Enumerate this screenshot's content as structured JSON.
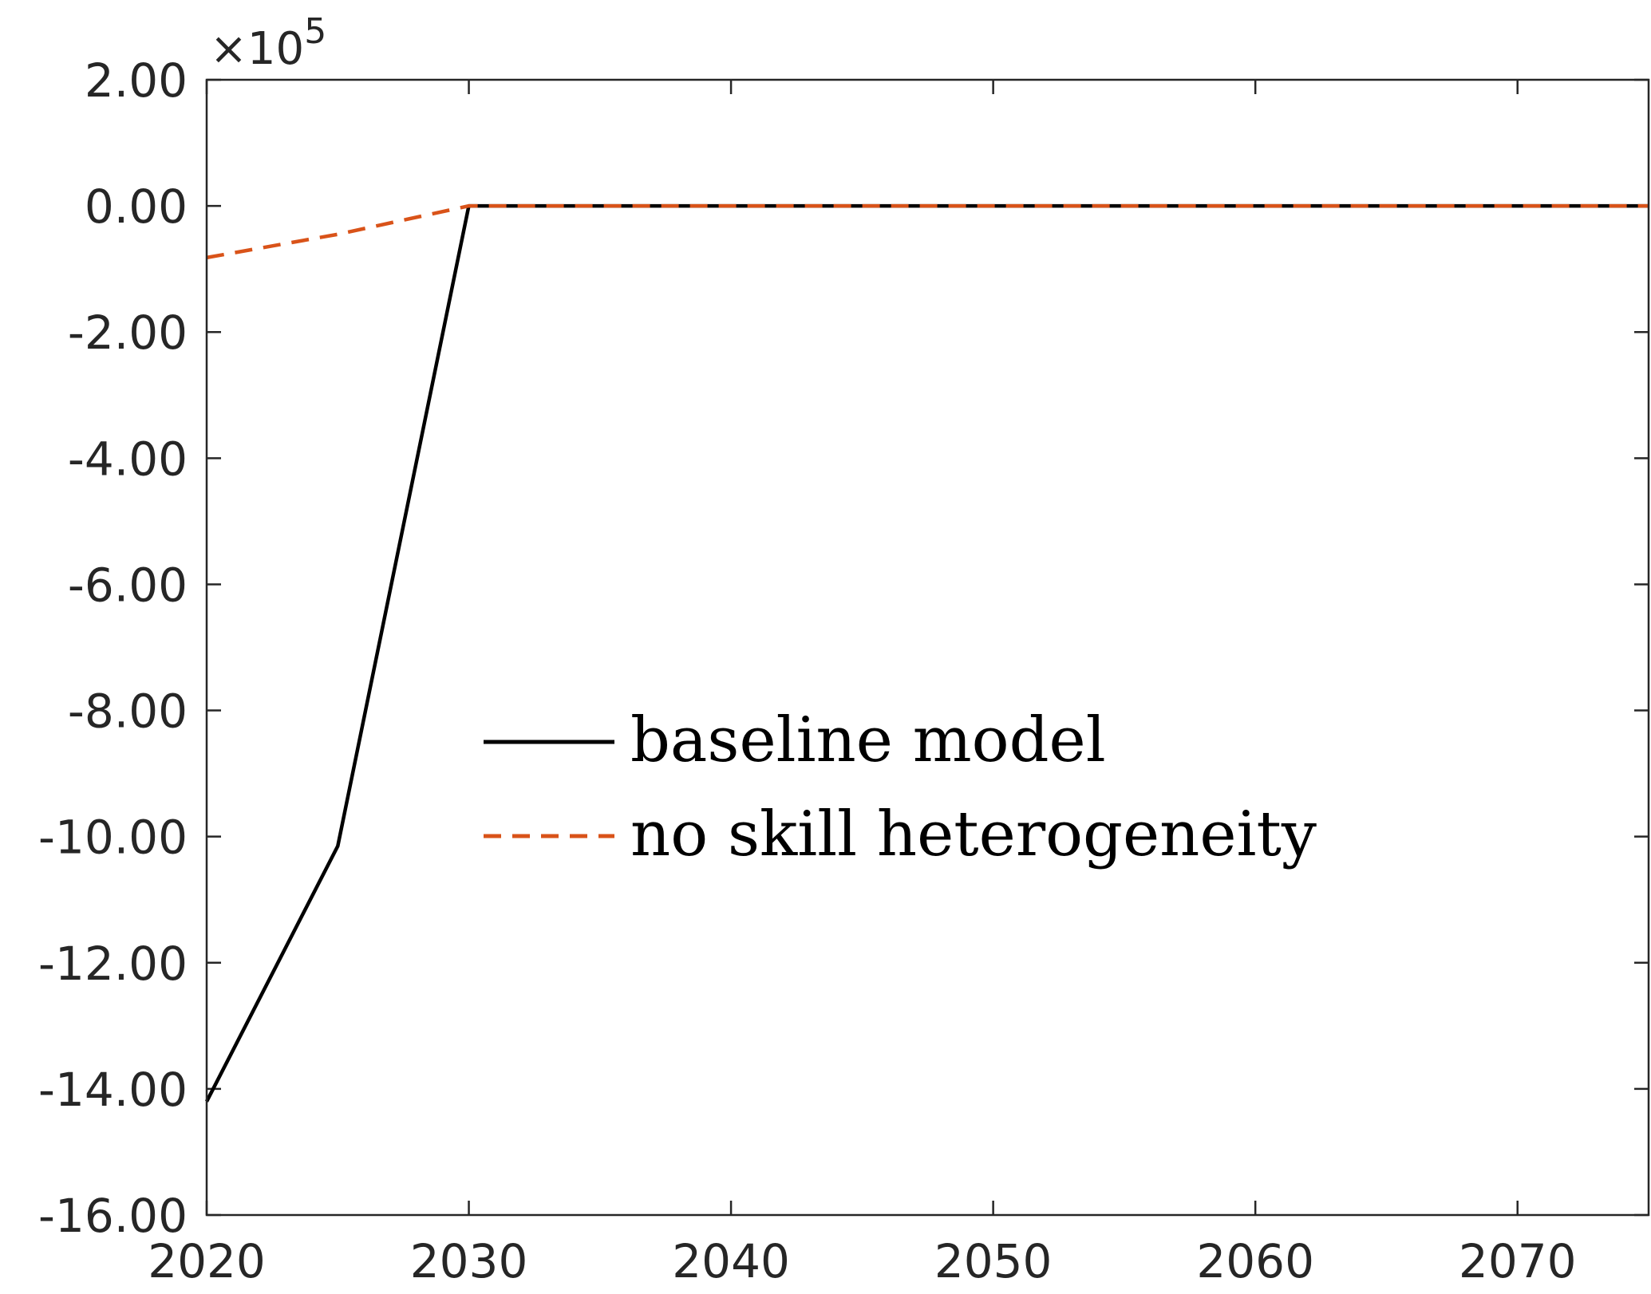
{
  "chart_data": {
    "type": "line",
    "title": "",
    "xlabel": "",
    "ylabel": "",
    "xlim": [
      2020,
      2075
    ],
    "ylim": [
      -16,
      2
    ],
    "x_ticks": [
      2020,
      2030,
      2040,
      2050,
      2060,
      2070
    ],
    "x_tick_labels": [
      "2020",
      "2030",
      "2040",
      "2050",
      "2060",
      "2070"
    ],
    "y_ticks": [
      2,
      0,
      -2,
      -4,
      -6,
      -8,
      -10,
      -12,
      -14,
      -16
    ],
    "y_tick_labels": [
      "2.00",
      "0.00",
      "-2.00",
      "-4.00",
      "-6.00",
      "-8.00",
      "-10.00",
      "-12.00",
      "-14.00",
      "-16.00"
    ],
    "y_exponent": {
      "base": "×10",
      "power": "5"
    },
    "grid": false,
    "legend_position": "center",
    "series": [
      {
        "name": "baseline model",
        "color": "#000000",
        "style": "solid",
        "x": [
          2020,
          2025,
          2030,
          2035,
          2040,
          2045,
          2050,
          2055,
          2060,
          2065,
          2070,
          2075
        ],
        "y": [
          -14.2,
          -10.15,
          0,
          0,
          0,
          0,
          0,
          0,
          0,
          0,
          0,
          0
        ]
      },
      {
        "name": "no skill heterogeneity",
        "color": "#D95319",
        "style": "dashed",
        "x": [
          2020,
          2025,
          2030,
          2035,
          2040,
          2045,
          2050,
          2055,
          2060,
          2065,
          2070,
          2075
        ],
        "y": [
          -0.82,
          -0.45,
          0,
          0,
          0,
          0,
          0,
          0,
          0,
          0,
          0,
          0
        ]
      }
    ]
  }
}
